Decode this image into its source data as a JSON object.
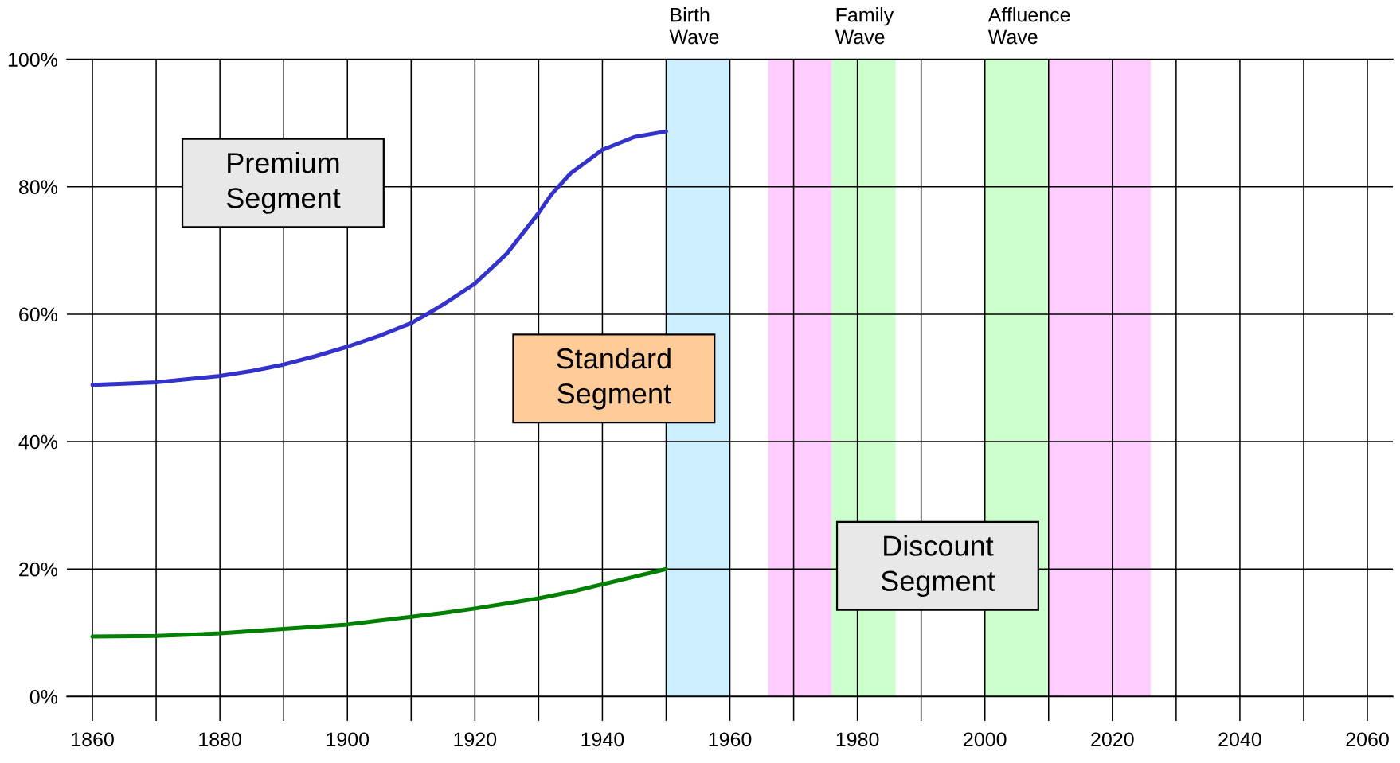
{
  "chart_data": {
    "type": "line",
    "x": [
      1860,
      1865,
      1870,
      1875,
      1880,
      1885,
      1890,
      1895,
      1900,
      1905,
      1910,
      1913,
      1915,
      1920,
      1925,
      1930,
      1932,
      1935,
      1940,
      1945,
      1950
    ],
    "series": [
      {
        "color": "#3333cc",
        "values": [
          48.9,
          49.1,
          49.3,
          49.8,
          50.3,
          51.1,
          52.1,
          53.4,
          54.9,
          56.6,
          58.6,
          60.3,
          61.5,
          64.8,
          69.5,
          75.9,
          78.8,
          82.1,
          85.8,
          87.8,
          88.7
        ]
      },
      {
        "color": "#008000",
        "x": [
          1860,
          1870,
          1880,
          1890,
          1900,
          1905,
          1910,
          1915,
          1920,
          1925,
          1930,
          1935,
          1940,
          1945,
          1950
        ],
        "values": [
          9.4,
          9.5,
          9.9,
          10.6,
          11.3,
          11.9,
          12.5,
          13.1,
          13.8,
          14.6,
          15.4,
          16.4,
          17.6,
          18.8,
          20.0
        ]
      }
    ],
    "xlim": [
      1856,
      2064
    ],
    "xticks": [
      1860,
      {
        "value": 1870,
        "label": null
      },
      1880,
      {
        "value": 1890,
        "label": null
      },
      1900,
      {
        "value": 1910,
        "label": null
      },
      1920,
      {
        "value": 1930,
        "label": null
      },
      1940,
      {
        "value": 1950,
        "label": null
      },
      1960,
      {
        "value": 1970,
        "label": null
      },
      1980,
      {
        "value": 1990,
        "label": null
      },
      2000,
      {
        "value": 2010,
        "label": null
      },
      2020,
      {
        "value": 2030,
        "label": null
      },
      2040,
      {
        "value": 2050,
        "label": null
      },
      2060
    ],
    "ylim": [
      0,
      100
    ],
    "yticks": [
      {
        "value": 0,
        "label": "0%"
      },
      {
        "value": 20,
        "label": "20%"
      },
      {
        "value": 40,
        "label": "40%"
      },
      {
        "value": 60,
        "label": "60%"
      },
      {
        "value": 80,
        "label": "80%"
      },
      {
        "value": 100,
        "label": "100%"
      }
    ],
    "grid": true,
    "line_style": "solid",
    "bands": [
      {
        "axis": "x",
        "from": 1950,
        "to": 1960,
        "label": "Birth\nWave",
        "color": "#cceeff"
      },
      {
        "axis": "x",
        "from": 1966,
        "to": 1976,
        "color": "#ffccff"
      },
      {
        "axis": "x",
        "from": 1976,
        "to": 1986,
        "label": "Family\nWave",
        "color": "#ccffcc"
      },
      {
        "axis": "x",
        "from": 2000,
        "to": 2010,
        "label": "Affluence\nWave",
        "color": "#ccffcc"
      },
      {
        "axis": "x",
        "from": 2010,
        "to": 2026,
        "color": "#ffccff"
      }
    ],
    "annotations": [
      "Premium\nSegment",
      "Standard\nSegment",
      "Discount\nSegment"
    ]
  }
}
